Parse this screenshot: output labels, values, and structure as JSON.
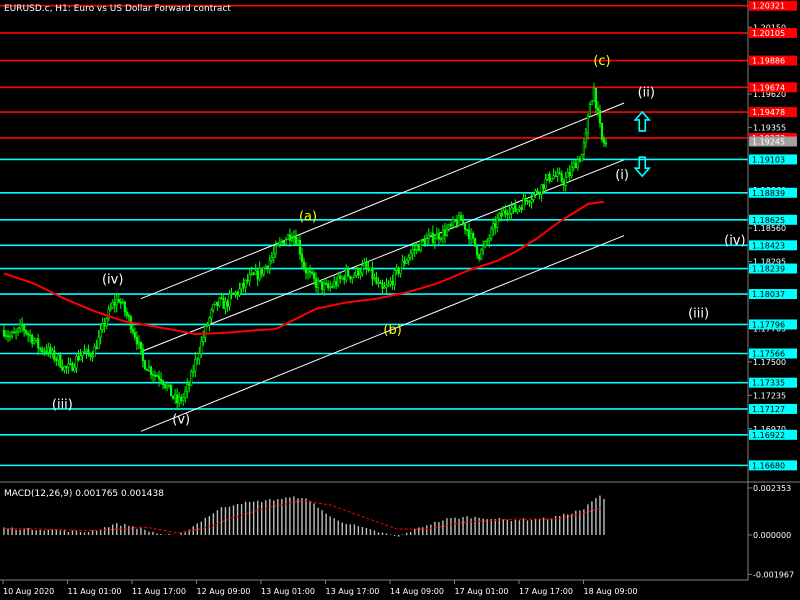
{
  "header": {
    "title": "EURUSD.c, H1:  Euro vs US Dollar Forward contract"
  },
  "colors": {
    "background": "#000000",
    "candle": "#00ff00",
    "ma": "#ff0000",
    "channel": "#ffffff",
    "level_red": "#ff0000",
    "level_cyan": "#00ffff",
    "wave_white": "#ffffff",
    "wave_yellow": "#ffff00",
    "macd_hist": "#c0c0c0",
    "macd_signal": "#ff0000",
    "arrow": "#00ffff"
  },
  "chart_data": {
    "type": "candlestick",
    "symbol": "EURUSD.c",
    "timeframe": "H1",
    "ylim": [
      1.1658,
      1.2035
    ],
    "price_ticks": [
      "1.20150",
      "1.19620",
      "1.19355",
      "1.18860",
      "1.18560",
      "1.18295",
      "1.17765",
      "1.17500",
      "1.17235",
      "1.16970"
    ],
    "levels": [
      {
        "label": "1.20321",
        "value": 1.20321,
        "color": "red"
      },
      {
        "label": "1.20105",
        "value": 1.20105,
        "color": "red"
      },
      {
        "label": "1.19886",
        "value": 1.19886,
        "color": "red"
      },
      {
        "label": "1.19674",
        "value": 1.19674,
        "color": "red"
      },
      {
        "label": "1.19478",
        "value": 1.19478,
        "color": "red"
      },
      {
        "label": "1.19273",
        "value": 1.19273,
        "color": "red"
      },
      {
        "label": "1.19245",
        "value": 1.19245,
        "color": "gray"
      },
      {
        "label": "1.19103",
        "value": 1.19103,
        "color": "cyan"
      },
      {
        "label": "1.18839",
        "value": 1.18839,
        "color": "cyan"
      },
      {
        "label": "1.18625",
        "value": 1.18625,
        "color": "cyan"
      },
      {
        "label": "1.18423",
        "value": 1.18423,
        "color": "cyan"
      },
      {
        "label": "1.18239",
        "value": 1.18239,
        "color": "cyan"
      },
      {
        "label": "1.18037",
        "value": 1.18037,
        "color": "cyan"
      },
      {
        "label": "1.17796",
        "value": 1.17796,
        "color": "cyan"
      },
      {
        "label": "1.17566",
        "value": 1.17566,
        "color": "cyan"
      },
      {
        "label": "1.17335",
        "value": 1.17335,
        "color": "cyan"
      },
      {
        "label": "1.17127",
        "value": 1.17127,
        "color": "cyan"
      },
      {
        "label": "1.16922",
        "value": 1.16922,
        "color": "cyan"
      },
      {
        "label": "1.16680",
        "value": 1.1668,
        "color": "cyan"
      }
    ],
    "time_labels": [
      "10 Aug 2020",
      "11 Aug 01:00",
      "11 Aug 17:00",
      "12 Aug 09:00",
      "13 Aug 01:00",
      "13 Aug 17:00",
      "14 Aug 09:00",
      "17 Aug 01:00",
      "17 Aug 17:00",
      "18 Aug 09:00"
    ],
    "price_path": [
      [
        0,
        1.1775
      ],
      [
        3,
        1.177
      ],
      [
        6,
        1.1772
      ],
      [
        9,
        1.1778
      ],
      [
        12,
        1.1772
      ],
      [
        15,
        1.1767
      ],
      [
        18,
        1.176
      ],
      [
        21,
        1.176
      ],
      [
        24,
        1.1755
      ],
      [
        27,
        1.1752
      ],
      [
        30,
        1.1745
      ],
      [
        33,
        1.1745
      ],
      [
        36,
        1.1752
      ],
      [
        39,
        1.1758
      ],
      [
        42,
        1.1755
      ],
      [
        45,
        1.176
      ],
      [
        48,
        1.1772
      ],
      [
        51,
        1.1785
      ],
      [
        54,
        1.1795
      ],
      [
        57,
        1.18
      ],
      [
        60,
        1.179
      ],
      [
        63,
        1.178
      ],
      [
        66,
        1.1768
      ],
      [
        69,
        1.175
      ],
      [
        72,
        1.1745
      ],
      [
        75,
        1.174
      ],
      [
        78,
        1.1738
      ],
      [
        81,
        1.173
      ],
      [
        84,
        1.1722
      ],
      [
        86,
        1.1718
      ],
      [
        89,
        1.1722
      ],
      [
        92,
        1.1732
      ],
      [
        95,
        1.175
      ],
      [
        98,
        1.1765
      ],
      [
        101,
        1.178
      ],
      [
        104,
        1.1792
      ],
      [
        107,
        1.1797
      ],
      [
        110,
        1.1795
      ],
      [
        113,
        1.1802
      ],
      [
        116,
        1.1805
      ],
      [
        119,
        1.181
      ],
      [
        122,
        1.1816
      ],
      [
        125,
        1.1818
      ],
      [
        128,
        1.1822
      ],
      [
        131,
        1.1828
      ],
      [
        134,
        1.1835
      ],
      [
        137,
        1.1843
      ],
      [
        140,
        1.1848
      ],
      [
        143,
        1.1852
      ],
      [
        146,
        1.1845
      ],
      [
        149,
        1.1825
      ],
      [
        152,
        1.1818
      ],
      [
        155,
        1.1812
      ],
      [
        158,
        1.181
      ],
      [
        161,
        1.1808
      ],
      [
        164,
        1.1812
      ],
      [
        167,
        1.1815
      ],
      [
        170,
        1.182
      ],
      [
        173,
        1.1818
      ],
      [
        176,
        1.1822
      ],
      [
        179,
        1.1825
      ],
      [
        182,
        1.182
      ],
      [
        185,
        1.1812
      ],
      [
        188,
        1.1806
      ],
      [
        191,
        1.181
      ],
      [
        194,
        1.1818
      ],
      [
        197,
        1.1825
      ],
      [
        200,
        1.1832
      ],
      [
        203,
        1.1838
      ],
      [
        206,
        1.1842
      ],
      [
        209,
        1.1846
      ],
      [
        212,
        1.1848
      ],
      [
        215,
        1.185
      ],
      [
        218,
        1.1852
      ],
      [
        221,
        1.1855
      ],
      [
        224,
        1.186
      ],
      [
        227,
        1.1862
      ],
      [
        230,
        1.1855
      ],
      [
        233,
        1.1845
      ],
      [
        236,
        1.1835
      ],
      [
        239,
        1.1842
      ],
      [
        242,
        1.1852
      ],
      [
        245,
        1.1862
      ],
      [
        248,
        1.1868
      ],
      [
        251,
        1.1872
      ],
      [
        254,
        1.187
      ],
      [
        257,
        1.1875
      ],
      [
        260,
        1.188
      ],
      [
        263,
        1.1882
      ],
      [
        266,
        1.1887
      ],
      [
        269,
        1.1893
      ],
      [
        272,
        1.1898
      ],
      [
        275,
        1.1896
      ],
      [
        278,
        1.1893
      ],
      [
        281,
        1.1899
      ],
      [
        284,
        1.1908
      ],
      [
        287,
        1.1914
      ],
      [
        289,
        1.1928
      ],
      [
        291,
        1.1955
      ],
      [
        293,
        1.1966
      ],
      [
        295,
        1.1945
      ],
      [
        297,
        1.1925
      ],
      [
        299,
        1.1922
      ]
    ],
    "ma_path": [
      [
        0,
        1.182
      ],
      [
        15,
        1.1812
      ],
      [
        30,
        1.18
      ],
      [
        45,
        1.179
      ],
      [
        60,
        1.1782
      ],
      [
        75,
        1.1778
      ],
      [
        85,
        1.1775
      ],
      [
        95,
        1.1772
      ],
      [
        110,
        1.1773
      ],
      [
        125,
        1.1775
      ],
      [
        135,
        1.1776
      ],
      [
        145,
        1.1784
      ],
      [
        155,
        1.1792
      ],
      [
        170,
        1.1797
      ],
      [
        185,
        1.18
      ],
      [
        200,
        1.1805
      ],
      [
        215,
        1.1812
      ],
      [
        230,
        1.1822
      ],
      [
        245,
        1.183
      ],
      [
        255,
        1.1838
      ],
      [
        265,
        1.1848
      ],
      [
        275,
        1.186
      ],
      [
        285,
        1.187
      ],
      [
        290,
        1.1875
      ],
      [
        299,
        1.1877
      ]
    ],
    "channel": {
      "upper": [
        [
          68,
          1.18
        ],
        [
          308,
          1.1955
        ]
      ],
      "middle": [
        [
          68,
          1.1758
        ],
        [
          308,
          1.191
        ]
      ],
      "lower": [
        [
          68,
          1.1695
        ],
        [
          308,
          1.185
        ]
      ]
    },
    "wave_labels": [
      {
        "text": "(iv)",
        "i": 54,
        "price": 1.1812,
        "color": "white"
      },
      {
        "text": "(iii)",
        "i": 29,
        "price": 1.1713,
        "color": "white"
      },
      {
        "text": "(v)",
        "i": 88,
        "price": 1.1701,
        "color": "white"
      },
      {
        "text": "(a)",
        "i": 151,
        "price": 1.1862,
        "color": "yellow"
      },
      {
        "text": "(b)",
        "i": 193,
        "price": 1.1772,
        "color": "yellow"
      },
      {
        "text": "(c)",
        "i": 297,
        "price": 1.1985,
        "color": "yellow"
      },
      {
        "text": "(ii)",
        "i": 319,
        "price": 1.196,
        "color": "white"
      },
      {
        "text": "(i)",
        "i": 307,
        "price": 1.1895,
        "color": "white"
      },
      {
        "text": "(iv)",
        "i": 363,
        "price": 1.1843,
        "color": "white"
      },
      {
        "text": "(iii)",
        "i": 345,
        "price": 1.1785,
        "color": "white"
      }
    ],
    "arrows": [
      {
        "direction": "up",
        "i": 317,
        "price": 1.194
      },
      {
        "direction": "down",
        "i": 317,
        "price": 1.1905
      }
    ],
    "candle_count": 300
  },
  "macd": {
    "label": "MACD(12,26,9) 0.001765 0.001438",
    "ticks": [
      "0.002353",
      "0.000000",
      "-0.001967"
    ],
    "ylim": [
      -0.00215,
      0.00255
    ],
    "hist_path": [
      [
        0,
        0.00035
      ],
      [
        10,
        0.0003
      ],
      [
        20,
        0.00028
      ],
      [
        30,
        0.00022
      ],
      [
        40,
        0.00015
      ],
      [
        48,
        0.0003
      ],
      [
        55,
        0.00055
      ],
      [
        62,
        0.00048
      ],
      [
        70,
        0.00025
      ],
      [
        78,
        5e-05
      ],
      [
        86,
        -5e-05
      ],
      [
        92,
        0.0003
      ],
      [
        100,
        0.00085
      ],
      [
        108,
        0.00135
      ],
      [
        116,
        0.00158
      ],
      [
        124,
        0.00165
      ],
      [
        132,
        0.00175
      ],
      [
        140,
        0.00185
      ],
      [
        148,
        0.0019
      ],
      [
        155,
        0.0015
      ],
      [
        162,
        0.0009
      ],
      [
        170,
        0.0006
      ],
      [
        180,
        0.0003
      ],
      [
        190,
        5e-05
      ],
      [
        196,
        -0.0001
      ],
      [
        202,
        0.0002
      ],
      [
        210,
        0.0005
      ],
      [
        220,
        0.0008
      ],
      [
        230,
        0.0009
      ],
      [
        240,
        0.00085
      ],
      [
        250,
        0.00075
      ],
      [
        260,
        0.00078
      ],
      [
        270,
        0.00082
      ],
      [
        280,
        0.00105
      ],
      [
        288,
        0.0013
      ],
      [
        293,
        0.00176
      ],
      [
        296,
        0.00195
      ],
      [
        299,
        0.00176
      ]
    ],
    "signal_path": [
      [
        0,
        0.00032
      ],
      [
        20,
        0.0003
      ],
      [
        40,
        0.00022
      ],
      [
        55,
        0.00028
      ],
      [
        70,
        0.0004
      ],
      [
        86,
        0.0001
      ],
      [
        100,
        0.00035
      ],
      [
        115,
        0.0009
      ],
      [
        130,
        0.00135
      ],
      [
        148,
        0.00172
      ],
      [
        162,
        0.0015
      ],
      [
        180,
        0.00085
      ],
      [
        195,
        0.0003
      ],
      [
        210,
        0.0003
      ],
      [
        230,
        0.00065
      ],
      [
        255,
        0.0008
      ],
      [
        275,
        0.0008
      ],
      [
        290,
        0.00115
      ],
      [
        299,
        0.00144
      ]
    ]
  }
}
